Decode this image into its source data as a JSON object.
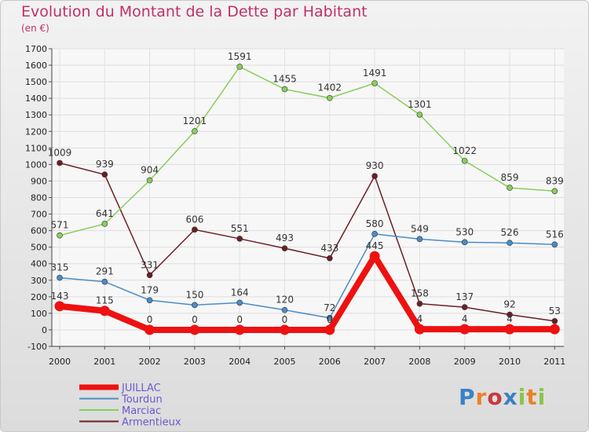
{
  "chart_data": {
    "type": "line",
    "title": "Evolution du Montant de la Dette par Habitant",
    "subtitle": "(en €)",
    "x": [
      "2000",
      "2001",
      "2002",
      "2003",
      "2004",
      "2005",
      "2006",
      "2007",
      "2008",
      "2009",
      "2010",
      "2011"
    ],
    "ylim": [
      -100,
      1700
    ],
    "yticks": [
      -100,
      0,
      100,
      200,
      300,
      400,
      500,
      600,
      700,
      800,
      900,
      1000,
      1100,
      1200,
      1300,
      1400,
      1500,
      1600,
      1700
    ],
    "legend_position": "bottom-left",
    "series": [
      {
        "name": "Armentieux",
        "color": "#6b1f24",
        "values": [
          1009,
          939,
          331,
          606,
          551,
          493,
          433,
          930,
          158,
          137,
          92,
          53
        ],
        "labels": [
          "1009",
          "939",
          "331",
          "606",
          "551",
          "493",
          "433",
          "930",
          "158",
          "137",
          "92",
          "53"
        ]
      },
      {
        "name": "Marciac",
        "color": "#88cf5a",
        "values": [
          571,
          641,
          904,
          1201,
          1591,
          1455,
          1402,
          1491,
          1301,
          1022,
          859,
          839
        ],
        "labels": [
          "571",
          "641",
          "904",
          "1201",
          "1591",
          "1455",
          "1402",
          "1491",
          "1301",
          "1022",
          "859",
          "839"
        ]
      },
      {
        "name": "Tourdun",
        "color": "#4a8cc8",
        "values": [
          315,
          291,
          179,
          150,
          164,
          120,
          72,
          580,
          549,
          530,
          526,
          516
        ],
        "labels": [
          "315",
          "291",
          "179",
          "150",
          "164",
          "120",
          "72",
          "580",
          "549",
          "530",
          "526",
          "516"
        ]
      },
      {
        "name": "JUILLAC",
        "color": "#ee1111",
        "values": [
          143,
          115,
          0,
          0,
          0,
          0,
          0,
          445,
          4,
          4,
          4,
          4
        ],
        "labels": [
          "143",
          "115",
          "0",
          "0",
          "0",
          "0",
          "0",
          "445",
          "4",
          "4",
          "4",
          ""
        ]
      }
    ]
  },
  "logo": {
    "text": "Proxiti"
  }
}
